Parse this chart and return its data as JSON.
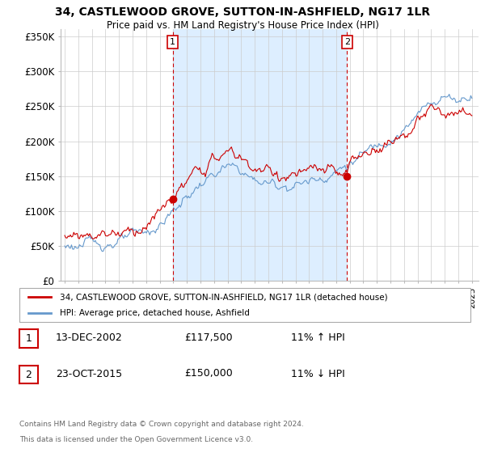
{
  "title": "34, CASTLEWOOD GROVE, SUTTON-IN-ASHFIELD, NG17 1LR",
  "subtitle": "Price paid vs. HM Land Registry's House Price Index (HPI)",
  "ylabel_ticks": [
    "£0",
    "£50K",
    "£100K",
    "£150K",
    "£200K",
    "£250K",
    "£300K",
    "£350K"
  ],
  "ytick_values": [
    0,
    50000,
    100000,
    150000,
    200000,
    250000,
    300000,
    350000
  ],
  "ylim": [
    0,
    360000
  ],
  "xlim_start": 1994.7,
  "xlim_end": 2025.5,
  "sale1_x": 2002.95,
  "sale1_y": 117500,
  "sale2_x": 2015.8,
  "sale2_y": 150000,
  "line1_label": "34, CASTLEWOOD GROVE, SUTTON-IN-ASHFIELD, NG17 1LR (detached house)",
  "line2_label": "HPI: Average price, detached house, Ashfield",
  "line1_color": "#cc0000",
  "line2_color": "#6699cc",
  "shade_color": "#ddeeff",
  "footnote1": "Contains HM Land Registry data © Crown copyright and database right 2024.",
  "footnote2": "This data is licensed under the Open Government Licence v3.0.",
  "background_color": "#ffffff",
  "grid_color": "#cccccc",
  "sale1_date": "13-DEC-2002",
  "sale1_price": "£117,500",
  "sale1_hpi": "11% ↑ HPI",
  "sale2_date": "23-OCT-2015",
  "sale2_price": "£150,000",
  "sale2_hpi": "11% ↓ HPI"
}
